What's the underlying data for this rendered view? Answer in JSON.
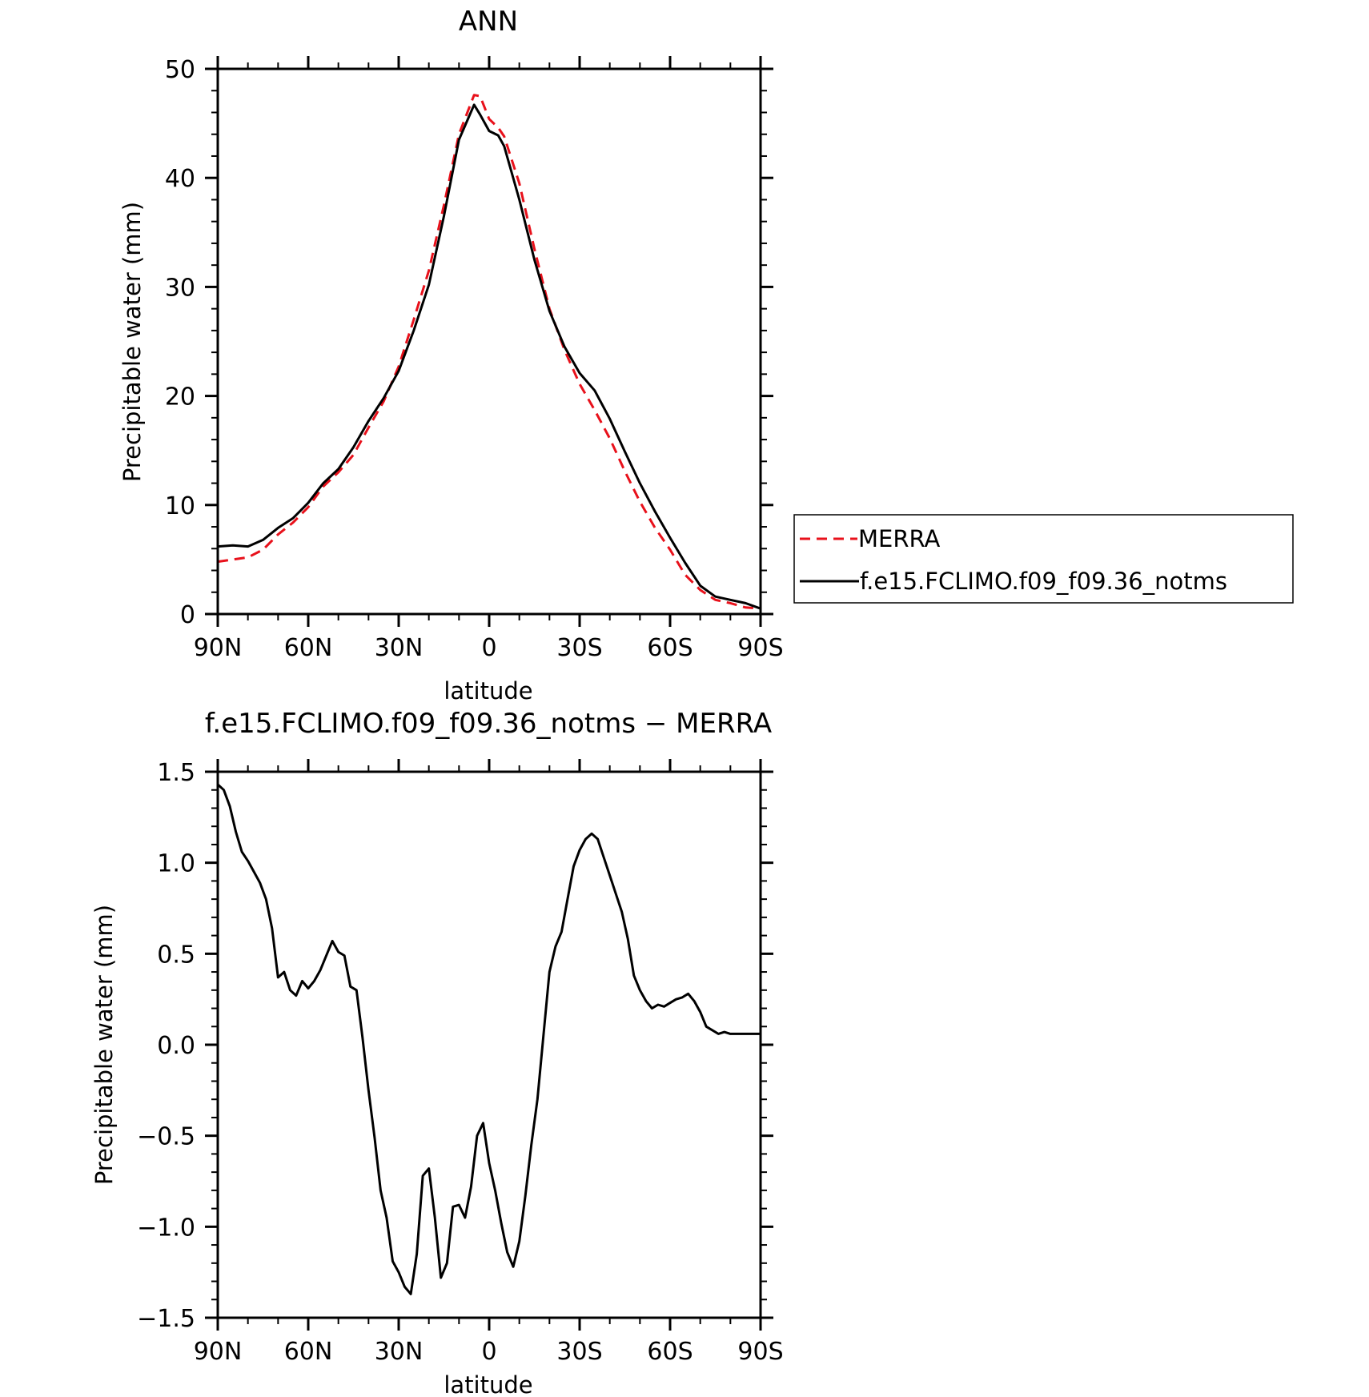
{
  "chart_data": [
    {
      "type": "line",
      "title": "ANN",
      "xlabel": "latitude",
      "ylabel": "Precipitable water (mm)",
      "xlim": [
        90,
        -90
      ],
      "ylim": [
        0,
        50
      ],
      "xticks": [
        90,
        60,
        30,
        0,
        -30,
        -60,
        -90
      ],
      "xtick_labels": [
        "90N",
        "60N",
        "30N",
        "0",
        "30S",
        "60S",
        "90S"
      ],
      "yticks": [
        0,
        10,
        20,
        30,
        40,
        50
      ],
      "ytick_labels": [
        "0",
        "10",
        "20",
        "30",
        "40",
        "50"
      ],
      "legend_position": "outside-right",
      "series": [
        {
          "name": "MERRA",
          "color": "#e8111b",
          "dash": true,
          "x": [
            90,
            85,
            80,
            75,
            70,
            65,
            60,
            55,
            50,
            45,
            40,
            35,
            30,
            25,
            20,
            15,
            10,
            5,
            3,
            0,
            -3,
            -5,
            -10,
            -15,
            -20,
            -25,
            -30,
            -35,
            -40,
            -45,
            -50,
            -55,
            -60,
            -65,
            -70,
            -75,
            -80,
            -85,
            -90
          ],
          "y": [
            4.8,
            5.0,
            5.2,
            5.9,
            7.3,
            8.4,
            9.8,
            11.7,
            13.0,
            14.6,
            17.1,
            19.5,
            22.7,
            27.0,
            31.5,
            37.5,
            44.0,
            47.6,
            47.5,
            45.4,
            44.6,
            43.8,
            39.5,
            33.5,
            28.0,
            24.2,
            21.1,
            18.7,
            16.1,
            13.1,
            10.3,
            7.9,
            5.9,
            3.6,
            2.2,
            1.3,
            1.0,
            0.6,
            0.5
          ],
          "legend_label": "MERRA"
        },
        {
          "name": "f.e15.FCLIMO.f09_f09.36_notms",
          "color": "#000000",
          "dash": false,
          "x": [
            90,
            85,
            80,
            75,
            70,
            65,
            60,
            55,
            50,
            45,
            40,
            35,
            30,
            25,
            20,
            15,
            10,
            5,
            3,
            0,
            -3,
            -5,
            -10,
            -15,
            -20,
            -25,
            -30,
            -35,
            -40,
            -45,
            -50,
            -55,
            -60,
            -65,
            -70,
            -75,
            -80,
            -85,
            -90
          ],
          "y": [
            6.2,
            6.3,
            6.2,
            6.8,
            7.9,
            8.8,
            10.2,
            12.0,
            13.3,
            15.3,
            17.7,
            19.8,
            22.3,
            26.0,
            30.2,
            36.5,
            43.5,
            46.7,
            45.8,
            44.3,
            43.9,
            42.9,
            38.0,
            32.5,
            27.8,
            24.5,
            22.1,
            20.5,
            17.9,
            14.9,
            12.0,
            9.4,
            7.0,
            4.7,
            2.6,
            1.6,
            1.3,
            1.0,
            0.5
          ],
          "legend_label": "f.e15.FCLIMO.f09_f09.36_notms"
        }
      ]
    },
    {
      "type": "line",
      "title": "f.e15.FCLIMO.f09_f09.36_notms − MERRA",
      "xlabel": "latitude",
      "ylabel": "Precipitable water (mm)",
      "xlim": [
        90,
        -90
      ],
      "ylim": [
        -1.5,
        1.5
      ],
      "xticks": [
        90,
        60,
        30,
        0,
        -30,
        -60,
        -90
      ],
      "xtick_labels": [
        "90N",
        "60N",
        "30N",
        "0",
        "30S",
        "60S",
        "90S"
      ],
      "yticks": [
        1.5,
        1.0,
        0.5,
        0.0,
        -0.5,
        -1.0,
        -1.5
      ],
      "ytick_labels": [
        "1.5",
        "1.0",
        "0.5",
        "0.0",
        "−0.5",
        "−1.0",
        "−1.5"
      ],
      "series": [
        {
          "name": "",
          "color": "#000000",
          "x": [
            90,
            88,
            86,
            84,
            82,
            80,
            78,
            76,
            74,
            72,
            70,
            68,
            66,
            64,
            62,
            60,
            58,
            56,
            54,
            52,
            50,
            48,
            46,
            44,
            42,
            40,
            38,
            36,
            34,
            32,
            30,
            28,
            26,
            24,
            22,
            20,
            18,
            16,
            14,
            12,
            10,
            8,
            6,
            4,
            2,
            0,
            -2,
            -4,
            -6,
            -8,
            -10,
            -12,
            -14,
            -16,
            -18,
            -20,
            -22,
            -24,
            -26,
            -28,
            -30,
            -32,
            -34,
            -36,
            -38,
            -40,
            -42,
            -44,
            -46,
            -48,
            -50,
            -52,
            -54,
            -56,
            -58,
            -60,
            -62,
            -64,
            -66,
            -68,
            -70,
            -72,
            -74,
            -76,
            -78,
            -80,
            -82,
            -84,
            -86,
            -88,
            -90
          ],
          "y": [
            1.43,
            1.4,
            1.31,
            1.17,
            1.06,
            1.01,
            0.95,
            0.89,
            0.8,
            0.64,
            0.37,
            0.4,
            0.3,
            0.27,
            0.35,
            0.31,
            0.35,
            0.41,
            0.49,
            0.57,
            0.51,
            0.49,
            0.32,
            0.3,
            0.04,
            -0.25,
            -0.51,
            -0.8,
            -0.95,
            -1.19,
            -1.25,
            -1.33,
            -1.37,
            -1.15,
            -0.72,
            -0.68,
            -0.95,
            -1.28,
            -1.2,
            -0.89,
            -0.88,
            -0.95,
            -0.78,
            -0.5,
            -0.43,
            -0.65,
            -0.8,
            -0.98,
            -1.14,
            -1.22,
            -1.08,
            -0.83,
            -0.55,
            -0.3,
            0.05,
            0.4,
            0.54,
            0.62,
            0.8,
            0.98,
            1.07,
            1.13,
            1.16,
            1.13,
            1.03,
            0.93,
            0.83,
            0.73,
            0.58,
            0.38,
            0.3,
            0.24,
            0.2,
            0.22,
            0.21,
            0.23,
            0.25,
            0.26,
            0.28,
            0.24,
            0.18,
            0.1,
            0.08,
            0.06,
            0.07,
            0.06,
            0.06,
            0.06,
            0.06,
            0.06,
            0.06
          ]
        }
      ]
    }
  ]
}
